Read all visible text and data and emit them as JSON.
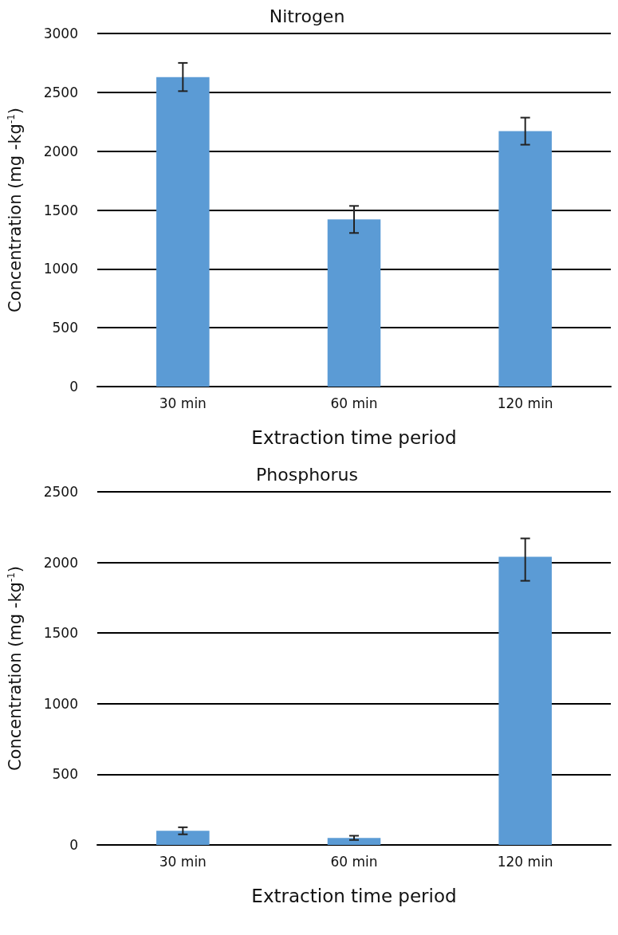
{
  "chart_data": [
    {
      "type": "bar",
      "title": "Nitrogen",
      "xlabel": "Extraction time period",
      "ylabel": "Concentration (mg -kg$^{-1}$)",
      "categories": [
        "30 min",
        "60 min",
        "120 min"
      ],
      "values": [
        2630,
        1420,
        2170
      ],
      "errors": [
        120,
        115,
        115
      ],
      "color": "#5b9bd5",
      "ylim": [
        0,
        3000
      ],
      "yticks": [
        0,
        500,
        1000,
        1500,
        2000,
        2500,
        3000
      ],
      "grid": "y"
    },
    {
      "type": "bar",
      "title": "Phosphorus",
      "xlabel": "Extraction time period",
      "ylabel": "Concentration (mg -kg$^{-1}$)",
      "categories": [
        "30 min",
        "60 min",
        "120 min"
      ],
      "values": [
        100,
        50,
        2040
      ],
      "errors": [
        25,
        15,
        [
          1870,
          2170
        ]
      ],
      "color": "#5b9bd5",
      "ylim": [
        0,
        2500
      ],
      "yticks": [
        0,
        500,
        1000,
        1500,
        2000,
        2500
      ],
      "grid": "y"
    }
  ]
}
